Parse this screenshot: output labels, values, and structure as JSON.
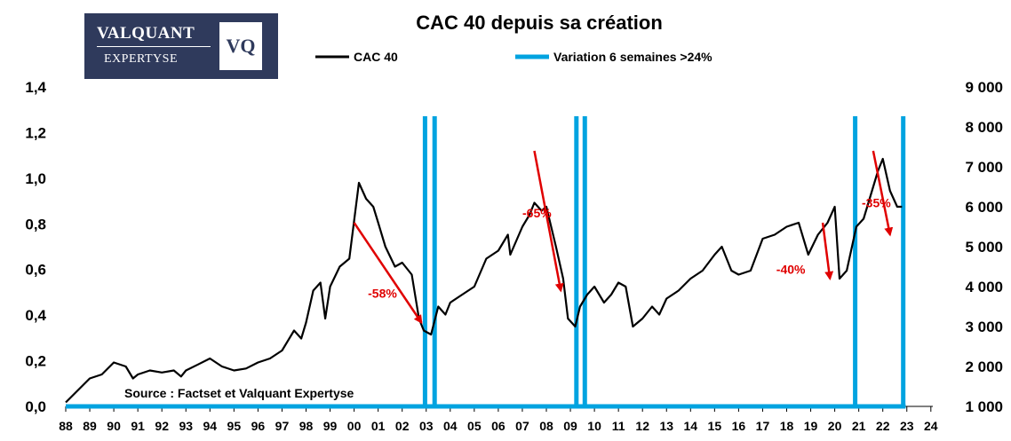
{
  "logo": {
    "line1": "VALQUANT",
    "line2": "EXPERTYSE",
    "mark": "VQ"
  },
  "chart_data": {
    "type": "line",
    "title": "CAC 40 depuis sa création",
    "source": "Source : Factset et Valquant Expertyse",
    "legend_position": "top",
    "x_tick_labels": [
      "88",
      "89",
      "90",
      "91",
      "92",
      "93",
      "94",
      "95",
      "96",
      "97",
      "98",
      "99",
      "00",
      "01",
      "02",
      "03",
      "04",
      "05",
      "06",
      "07",
      "08",
      "09",
      "10",
      "11",
      "12",
      "13",
      "14",
      "15",
      "16",
      "17",
      "18",
      "19",
      "20",
      "21",
      "22",
      "23",
      "24"
    ],
    "y_left": {
      "ticks": [
        "0,0",
        "0,2",
        "0,4",
        "0,6",
        "0,8",
        "1,0",
        "1,2",
        "1,4"
      ],
      "range": [
        0,
        1.4
      ]
    },
    "y_right": {
      "ticks": [
        "1 000",
        "2 000",
        "3 000",
        "4 000",
        "5 000",
        "6 000",
        "7 000",
        "8 000",
        "9 000"
      ],
      "range": [
        1000,
        9000
      ]
    },
    "colors": {
      "cac40": "#000000",
      "variation": "#00a3e0",
      "arrows": "#e00000"
    },
    "series": [
      {
        "name": "CAC 40",
        "axis": "right",
        "x": [
          1988.0,
          1988.5,
          1989.0,
          1989.5,
          1990.0,
          1990.5,
          1990.8,
          1991.0,
          1991.5,
          1992.0,
          1992.5,
          1992.8,
          1993.0,
          1993.5,
          1994.0,
          1994.5,
          1995.0,
          1995.5,
          1996.0,
          1996.5,
          1997.0,
          1997.5,
          1997.8,
          1998.0,
          1998.3,
          1998.6,
          1998.8,
          1999.0,
          1999.4,
          1999.8,
          2000.2,
          2000.5,
          2000.8,
          2001.0,
          2001.3,
          2001.7,
          2002.0,
          2002.4,
          2002.7,
          2002.9,
          2003.2,
          2003.5,
          2003.8,
          2004.0,
          2004.5,
          2005.0,
          2005.5,
          2006.0,
          2006.4,
          2006.5,
          2007.0,
          2007.3,
          2007.5,
          2007.8,
          2008.0,
          2008.4,
          2008.7,
          2008.9,
          2009.2,
          2009.4,
          2009.7,
          2010.0,
          2010.4,
          2010.7,
          2011.0,
          2011.3,
          2011.6,
          2011.8,
          2012.0,
          2012.4,
          2012.7,
          2013.0,
          2013.5,
          2014.0,
          2014.5,
          2015.0,
          2015.3,
          2015.7,
          2016.0,
          2016.5,
          2017.0,
          2017.5,
          2018.0,
          2018.5,
          2018.9,
          2019.3,
          2019.7,
          2020.0,
          2020.2,
          2020.5,
          2020.9,
          2021.2,
          2021.5,
          2021.8,
          2022.0,
          2022.3,
          2022.6,
          2022.8
        ],
        "y": [
          1100,
          1400,
          1700,
          1800,
          2100,
          2000,
          1700,
          1800,
          1900,
          1850,
          1900,
          1750,
          1900,
          2050,
          2200,
          2000,
          1900,
          1950,
          2100,
          2200,
          2400,
          2900,
          2700,
          3100,
          3900,
          4100,
          3200,
          4000,
          4500,
          4700,
          6600,
          6200,
          6000,
          5600,
          5000,
          4500,
          4600,
          4300,
          3200,
          2900,
          2800,
          3500,
          3300,
          3600,
          3800,
          4000,
          4700,
          4900,
          5300,
          4800,
          5500,
          5800,
          6100,
          5900,
          6000,
          5000,
          4200,
          3200,
          3000,
          3500,
          3800,
          4000,
          3600,
          3800,
          4100,
          4000,
          3000,
          3100,
          3200,
          3500,
          3300,
          3700,
          3900,
          4200,
          4400,
          4800,
          5000,
          4400,
          4300,
          4400,
          5200,
          5300,
          5500,
          5600,
          4800,
          5300,
          5600,
          6000,
          4200,
          4400,
          5500,
          5700,
          6300,
          6900,
          7200,
          6400,
          6000,
          6000
        ]
      },
      {
        "name": "Variation 6 semaines >24%",
        "type": "spikes",
        "x": [
          2002.95,
          2003.35,
          2009.25,
          2009.6,
          2020.85,
          2022.85
        ]
      }
    ],
    "annotations": [
      {
        "label": "-58%",
        "from": [
          2000.0,
          5600
        ],
        "to": [
          2002.8,
          3100
        ]
      },
      {
        "label": "-65%",
        "from": [
          2007.5,
          7400
        ],
        "to": [
          2008.6,
          3900
        ]
      },
      {
        "label": "-40%",
        "from": [
          2019.5,
          5600
        ],
        "to": [
          2019.8,
          4200
        ]
      },
      {
        "label": "-35%",
        "from": [
          2021.6,
          7400
        ],
        "to": [
          2022.3,
          5300
        ]
      }
    ]
  }
}
